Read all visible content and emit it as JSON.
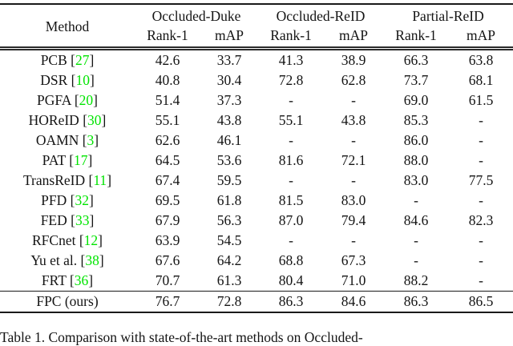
{
  "colors": {
    "citation_green": "#00e400",
    "rule_color": "#1a1a1a",
    "text_color": "#141414",
    "background": "#ffffff"
  },
  "table": {
    "method_header": "Method",
    "groups": [
      {
        "label": "Occluded-Duke"
      },
      {
        "label": "Occluded-ReID"
      },
      {
        "label": "Partial-ReID"
      }
    ],
    "sub_headers": [
      "Rank-1",
      "mAP",
      "Rank-1",
      "mAP",
      "Rank-1",
      "mAP"
    ],
    "rows": [
      {
        "method": "PCB",
        "ref": "27",
        "values": [
          "42.6",
          "33.7",
          "41.3",
          "38.9",
          "66.3",
          "63.8"
        ],
        "bold": []
      },
      {
        "method": "DSR",
        "ref": "10",
        "values": [
          "40.8",
          "30.4",
          "72.8",
          "62.8",
          "73.7",
          "68.1"
        ],
        "bold": []
      },
      {
        "method": "PGFA",
        "ref": "20",
        "values": [
          "51.4",
          "37.3",
          "-",
          "-",
          "69.0",
          "61.5"
        ],
        "bold": []
      },
      {
        "method": "HOReID",
        "ref": "30",
        "values": [
          "55.1",
          "43.8",
          "55.1",
          "43.8",
          "85.3",
          "-"
        ],
        "bold": []
      },
      {
        "method": "OAMN",
        "ref": "3",
        "values": [
          "62.6",
          "46.1",
          "-",
          "-",
          "86.0",
          "-"
        ],
        "bold": []
      },
      {
        "method": "PAT",
        "ref": "17",
        "values": [
          "64.5",
          "53.6",
          "81.6",
          "72.1",
          "88.0",
          "-"
        ],
        "bold": []
      },
      {
        "method": "TransReID",
        "ref": "11",
        "values": [
          "67.4",
          "59.5",
          "-",
          "-",
          "83.0",
          "77.5"
        ],
        "bold": []
      },
      {
        "method": "PFD",
        "ref": "32",
        "values": [
          "69.5",
          "61.8",
          "81.5",
          "83.0",
          "-",
          "-"
        ],
        "bold": []
      },
      {
        "method": "FED",
        "ref": "33",
        "values": [
          "67.9",
          "56.3",
          "87.0",
          "79.4",
          "84.6",
          "82.3"
        ],
        "bold": [
          2
        ]
      },
      {
        "method": "RFCnet",
        "ref": "12",
        "values": [
          "63.9",
          "54.5",
          "-",
          "-",
          "-",
          "-"
        ],
        "bold": []
      },
      {
        "method": "Yu et al.",
        "ref": "38",
        "values": [
          "67.6",
          "64.2",
          "68.8",
          "67.3",
          "-",
          "-"
        ],
        "bold": []
      },
      {
        "method": "FRT",
        "ref": "36",
        "values": [
          "70.7",
          "61.3",
          "80.4",
          "71.0",
          "88.2",
          "-"
        ],
        "bold": [
          4
        ]
      },
      {
        "method": "FPC (ours)",
        "ref": null,
        "values": [
          "76.7",
          "72.8",
          "86.3",
          "84.6",
          "86.3",
          "86.5"
        ],
        "bold": [
          0,
          1,
          3,
          5
        ],
        "separator_above": true
      }
    ]
  },
  "caption": {
    "text": "Table 1. Comparison with state-of-the-art methods on Occluded-"
  }
}
